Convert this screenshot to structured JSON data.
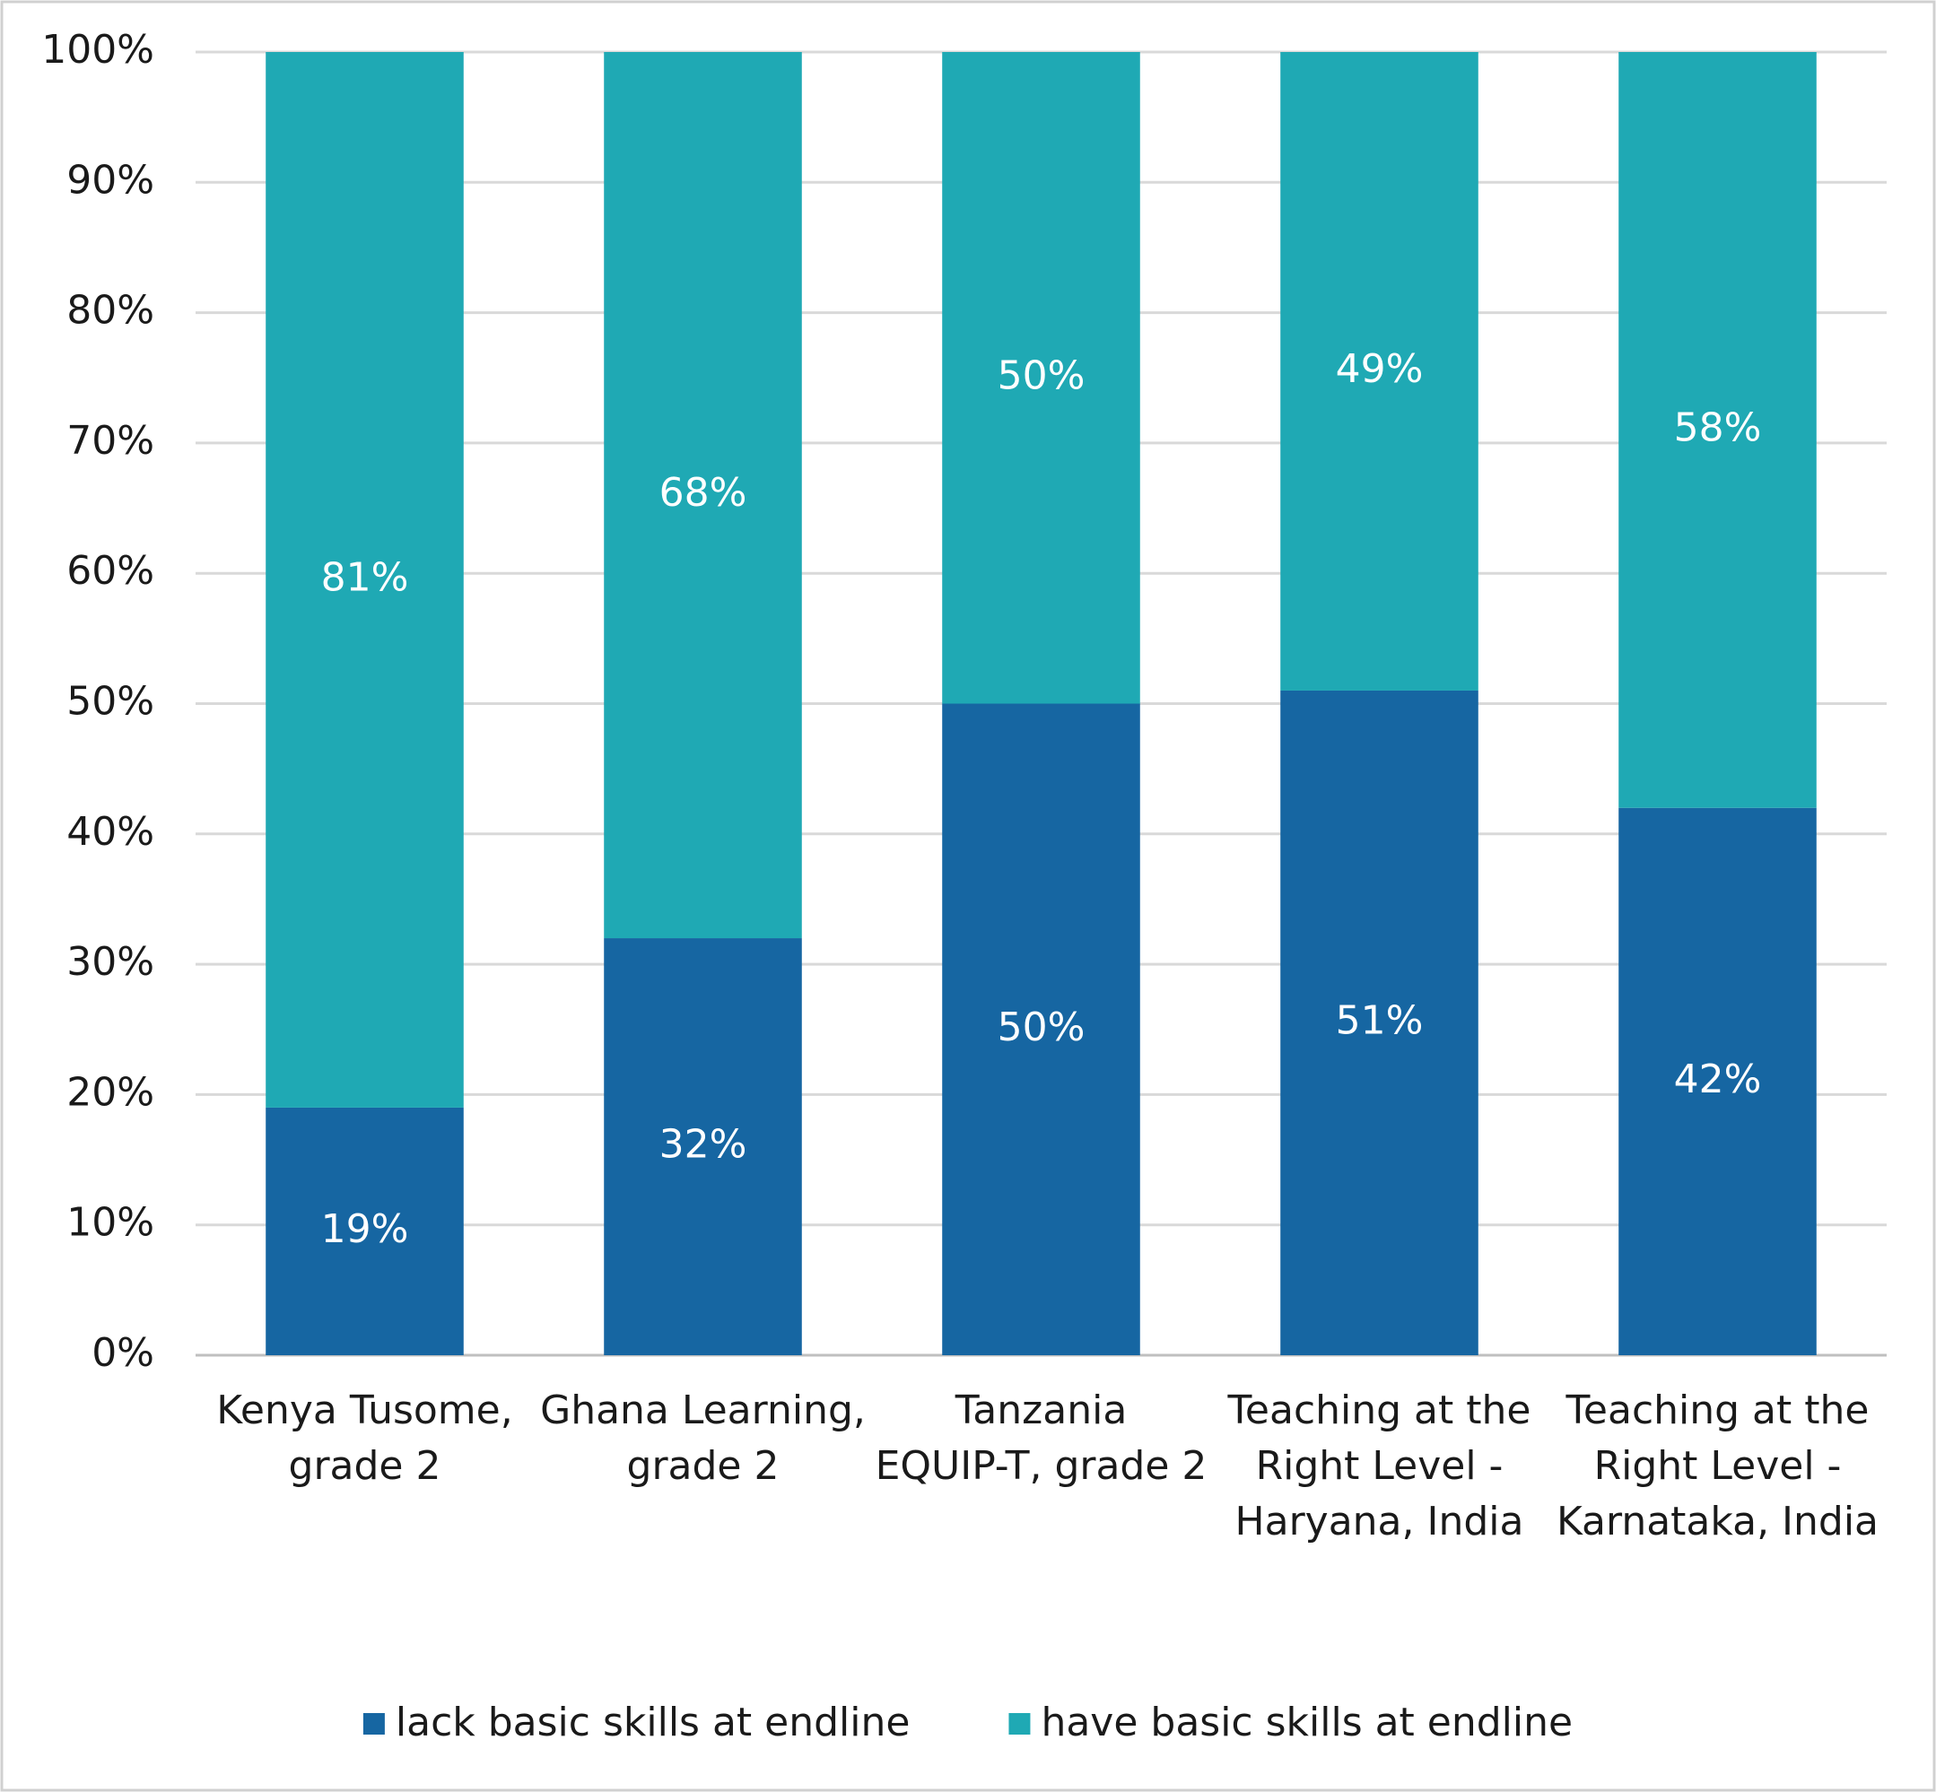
{
  "chart_data": {
    "type": "stacked_bar",
    "categories": [
      "Kenya Tusome, grade 2",
      "Ghana Learning, grade 2",
      "Tanzania EQUIP-T, grade 2",
      "Teaching at the Right Level - Haryana, India",
      "Teaching at the Right Level - Karnataka, India"
    ],
    "series": [
      {
        "name": "lack basic skills at endline",
        "color": "#1666a2",
        "values": [
          19,
          32,
          50,
          51,
          42
        ],
        "value_labels": [
          "19%",
          "32%",
          "50%",
          "51%",
          "42%"
        ]
      },
      {
        "name": "have basic skills at endline",
        "color": "#1fa9b4",
        "values": [
          81,
          68,
          50,
          49,
          58
        ],
        "value_labels": [
          "81%",
          "68%",
          "50%",
          "49%",
          "58%"
        ]
      }
    ],
    "ylim": [
      0,
      100
    ],
    "yticks": [
      {
        "value": 0,
        "label": "0%"
      },
      {
        "value": 10,
        "label": "10%"
      },
      {
        "value": 20,
        "label": "20%"
      },
      {
        "value": 30,
        "label": "30%"
      },
      {
        "value": 40,
        "label": "40%"
      },
      {
        "value": 50,
        "label": "50%"
      },
      {
        "value": 60,
        "label": "60%"
      },
      {
        "value": 70,
        "label": "70%"
      },
      {
        "value": 80,
        "label": "80%"
      },
      {
        "value": 90,
        "label": "90%"
      },
      {
        "value": 100,
        "label": "100%"
      }
    ],
    "grid": true,
    "legend": "bottom"
  }
}
